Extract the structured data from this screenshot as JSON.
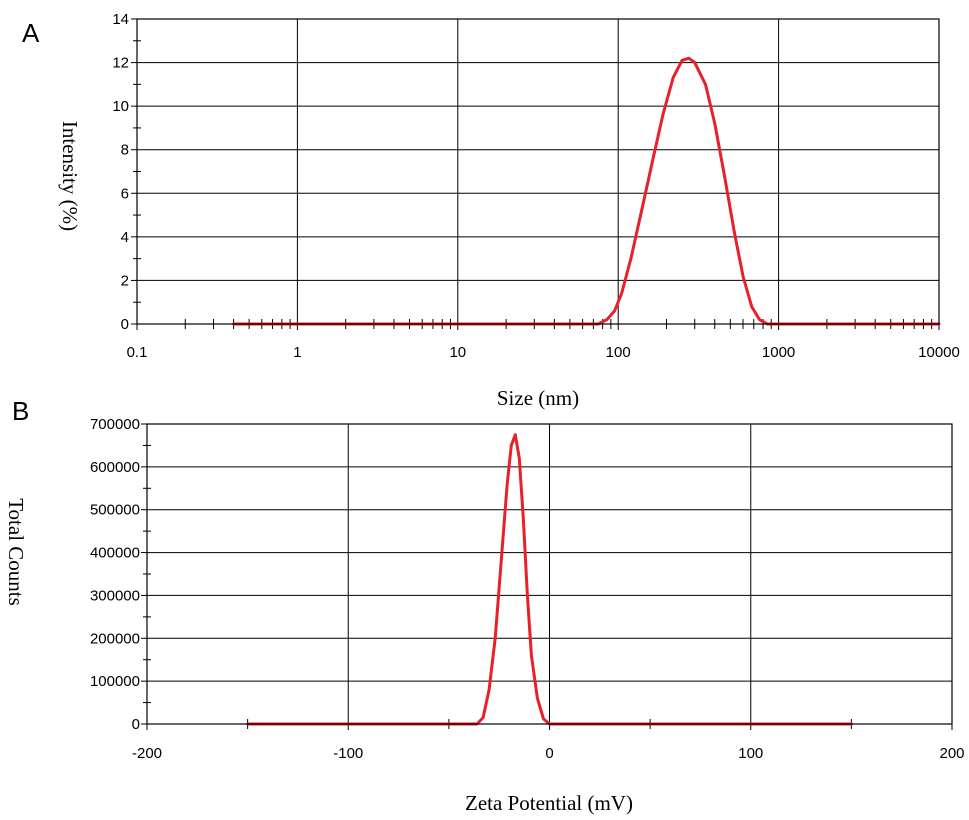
{
  "chart_data": [
    {
      "panel_label": "A",
      "type": "line",
      "xlabel": "Size (nm)",
      "ylabel": "Intensity (%)",
      "x_scale": "log",
      "xlim": [
        0.1,
        10000
      ],
      "ylim": [
        0,
        14
      ],
      "x_ticks": [
        0.1,
        1,
        10,
        100,
        1000,
        10000
      ],
      "x_tick_labels": [
        "0.1",
        "1",
        "10",
        "100",
        "1000",
        "10000"
      ],
      "y_ticks": [
        0,
        2,
        4,
        6,
        8,
        10,
        12,
        14
      ],
      "y_tick_labels": [
        "0",
        "2",
        "4",
        "6",
        "8",
        "10",
        "12",
        "14"
      ],
      "grid": true,
      "series_color": "#e8202a",
      "series": [
        {
          "x": [
            0.4,
            1,
            10,
            60,
            75,
            85,
            95,
            105,
            120,
            140,
            165,
            190,
            220,
            250,
            275,
            300,
            350,
            400,
            460,
            530,
            600,
            680,
            760,
            850,
            1000,
            3000,
            10000
          ],
          "y": [
            0,
            0,
            0,
            0,
            0,
            0.2,
            0.6,
            1.4,
            3.0,
            5.2,
            7.6,
            9.6,
            11.3,
            12.1,
            12.2,
            12.0,
            11.0,
            9.2,
            6.8,
            4.2,
            2.2,
            0.8,
            0.2,
            0,
            0,
            0,
            0
          ]
        }
      ]
    },
    {
      "panel_label": "B",
      "type": "line",
      "xlabel": "Zeta Potential (mV)",
      "ylabel": "Total Counts",
      "xlim": [
        -200,
        200
      ],
      "ylim": [
        0,
        700000
      ],
      "x_ticks": [
        -200,
        -100,
        0,
        100,
        200
      ],
      "x_tick_labels": [
        "-200",
        "-100",
        "0",
        "100",
        "200"
      ],
      "y_ticks": [
        0,
        100000,
        200000,
        300000,
        400000,
        500000,
        600000,
        700000
      ],
      "y_tick_labels": [
        "0",
        "100000",
        "200000",
        "300000",
        "400000",
        "500000",
        "600000",
        "700000"
      ],
      "grid": true,
      "series_color": "#e8202a",
      "series": [
        {
          "x": [
            -150,
            -100,
            -50,
            -36,
            -33,
            -30,
            -27,
            -24,
            -21,
            -19,
            -17,
            -15,
            -13,
            -11,
            -9,
            -6,
            -3,
            0,
            50,
            100,
            150
          ],
          "y": [
            0,
            0,
            0,
            0,
            15000,
            80000,
            200000,
            380000,
            560000,
            650000,
            675000,
            620000,
            480000,
            300000,
            160000,
            60000,
            12000,
            0,
            0,
            0,
            0
          ]
        }
      ]
    }
  ]
}
